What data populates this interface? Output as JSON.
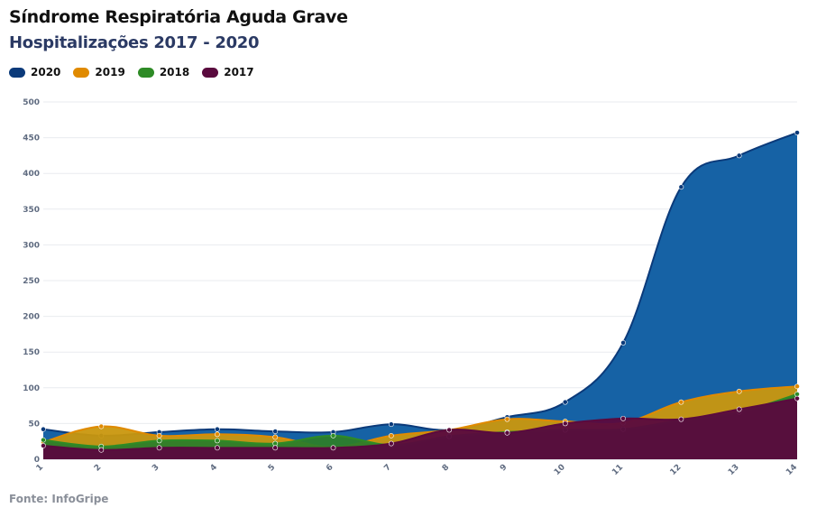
{
  "header": {
    "title": "Síndrome Respiratória Aguda Grave",
    "subtitle": "Hospitalizações 2017 - 2020"
  },
  "footer": {
    "source": "Fonte: InfoGripe"
  },
  "chart_data": {
    "type": "area",
    "x": [
      1,
      2,
      3,
      4,
      5,
      6,
      7,
      8,
      9,
      10,
      11,
      12,
      13,
      14
    ],
    "ylim": [
      0,
      500
    ],
    "yticks": [
      0,
      50,
      100,
      150,
      200,
      250,
      300,
      350,
      400,
      450,
      500
    ],
    "grid": true,
    "legend_position": "top-left",
    "series": [
      {
        "name": "2020",
        "color": "#0b3a7a",
        "fill": "#0a5aa0",
        "values": [
          42,
          33,
          38,
          42,
          39,
          38,
          49,
          41,
          59,
          80,
          163,
          381,
          425,
          457
        ]
      },
      {
        "name": "2019",
        "color": "#e08a00",
        "fill": "#c9970e",
        "values": [
          24,
          46,
          33,
          35,
          31,
          17,
          33,
          41,
          56,
          53,
          51,
          80,
          95,
          102
        ]
      },
      {
        "name": "2018",
        "color": "#2e8b26",
        "fill": "#2c7d2a",
        "values": [
          27,
          18,
          26,
          26,
          22,
          33,
          20,
          32,
          38,
          41,
          42,
          55,
          66,
          91
        ]
      },
      {
        "name": "2017",
        "color": "#5a0a3e",
        "fill": "#5a0a3e",
        "values": [
          19,
          13,
          16,
          16,
          16,
          16,
          22,
          41,
          37,
          50,
          57,
          56,
          70,
          85
        ]
      }
    ]
  }
}
